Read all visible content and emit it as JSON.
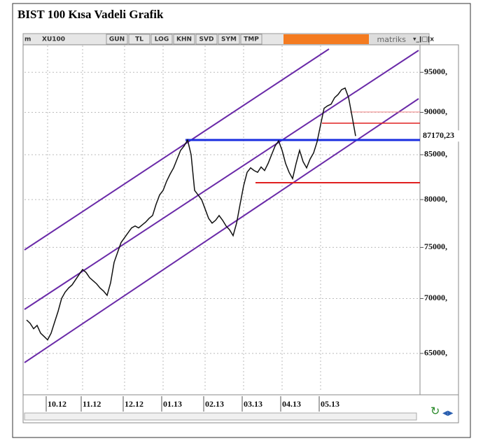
{
  "title": "BIST 100 Kısa Vadeli Grafik",
  "toolbar": {
    "symbol": "XU100",
    "buttons": [
      "GUN",
      "TL",
      "LOG",
      "KHN",
      "SVD",
      "SYM",
      "TMP"
    ],
    "brand": "matriks"
  },
  "chart_data": {
    "type": "line",
    "log": true,
    "grid": true,
    "categories": [
      null,
      null,
      null,
      null,
      null,
      null,
      "10.12",
      null,
      null,
      null,
      null,
      null,
      null,
      null,
      null,
      null,
      "11.12",
      null,
      null,
      null,
      null,
      null,
      null,
      null,
      null,
      null,
      null,
      null,
      "12.12",
      null,
      null,
      null,
      null,
      null,
      null,
      null,
      null,
      null,
      null,
      "01.13",
      null,
      null,
      null,
      null,
      null,
      null,
      null,
      null,
      null,
      null,
      null,
      "02.13",
      null,
      null,
      null,
      null,
      null,
      null,
      null,
      null,
      null,
      null,
      "03.13",
      null,
      null,
      null,
      null,
      null,
      null,
      null,
      null,
      null,
      null,
      "04.13",
      null,
      null,
      null,
      null,
      null,
      null,
      null,
      null,
      null,
      null,
      "05.13",
      null,
      null,
      null,
      null,
      null,
      null,
      null,
      null,
      null,
      null
    ],
    "series": [
      {
        "name": "XU100",
        "color": "#111111",
        "values": [
          68000,
          67700,
          67200,
          67500,
          66800,
          66500,
          66200,
          66800,
          67800,
          68800,
          70000,
          70600,
          71000,
          71300,
          71800,
          72300,
          72800,
          72500,
          72000,
          71700,
          71400,
          71000,
          70700,
          70300,
          71500,
          73500,
          74500,
          75500,
          76000,
          76500,
          77000,
          77200,
          77000,
          77300,
          77600,
          78000,
          78300,
          79500,
          80500,
          81000,
          82000,
          82800,
          83500,
          84500,
          85500,
          86000,
          86700,
          85000,
          81000,
          80500,
          80000,
          79000,
          78000,
          77500,
          77800,
          78300,
          77800,
          77200,
          76800,
          76200,
          77500,
          79500,
          81500,
          83000,
          83500,
          83200,
          83000,
          83600,
          83200,
          84000,
          85000,
          86000,
          86600,
          85500,
          84000,
          83000,
          82300,
          84000,
          85500,
          84200,
          83500,
          84500,
          85200,
          86500,
          88500,
          90500,
          90800,
          91000,
          91800,
          92200,
          92800,
          93000,
          91800,
          89500,
          87170.23
        ]
      }
    ],
    "ylim": [
      61700,
      98500
    ],
    "yticks": [
      {
        "value": 65000,
        "label": "65000,"
      },
      {
        "value": 70000,
        "label": "70000,"
      },
      {
        "value": 75000,
        "label": "75000,"
      },
      {
        "value": 80000,
        "label": "80000,"
      },
      {
        "value": 85000,
        "label": "85000,"
      },
      {
        "value": 90000,
        "label": "90000,"
      },
      {
        "value": 95000,
        "label": "95000,"
      }
    ],
    "annotations": [
      {
        "value": 87170.23,
        "label": "87170,23"
      }
    ]
  }
}
